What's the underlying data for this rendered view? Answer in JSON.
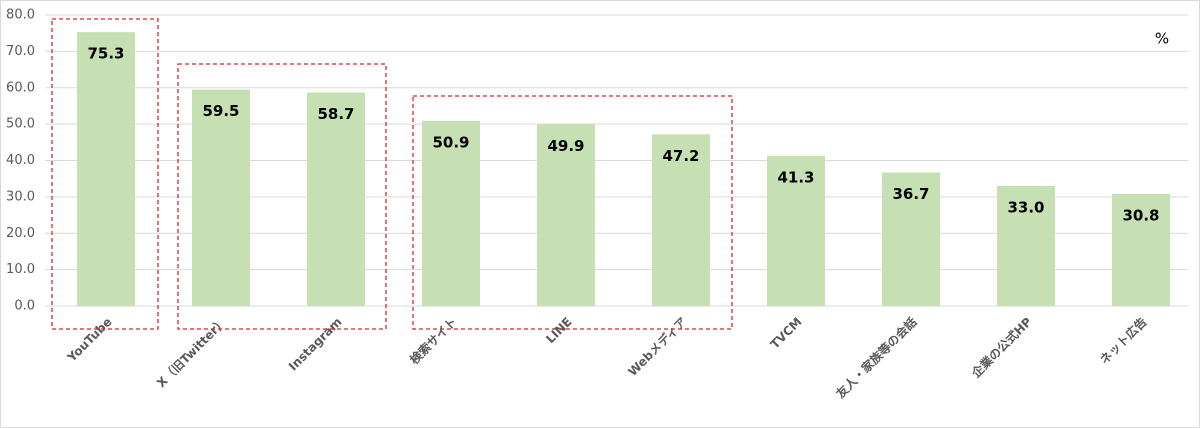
{
  "chart_data": {
    "type": "bar",
    "unit": "%",
    "categories": [
      "YouTube",
      "X（旧Twitter）",
      "Instagram",
      "検索サイト",
      "LINE",
      "Webメディア",
      "TVCM",
      "友人・家族等の会話",
      "企業の公式HP",
      "ネット広告"
    ],
    "values": [
      75.3,
      59.5,
      58.7,
      50.9,
      49.9,
      47.2,
      41.3,
      36.7,
      33.0,
      30.8
    ],
    "value_labels": [
      "75.3",
      "59.5",
      "58.7",
      "50.9",
      "49.9",
      "47.2",
      "41.3",
      "36.7",
      "33.0",
      "30.8"
    ],
    "color": "#c6e0b4",
    "ylim": [
      0,
      80
    ],
    "yticks": [
      {
        "value": 0,
        "label": "0.0"
      },
      {
        "value": 10,
        "label": "10.0"
      },
      {
        "value": 20,
        "label": "20.0"
      },
      {
        "value": 30,
        "label": "30.0"
      },
      {
        "value": 40,
        "label": "40.0"
      },
      {
        "value": 50,
        "label": "50.0"
      },
      {
        "value": 60,
        "label": "60.0"
      },
      {
        "value": 70,
        "label": "70.0"
      },
      {
        "value": 80,
        "label": "80.0"
      }
    ],
    "grid": true
  }
}
